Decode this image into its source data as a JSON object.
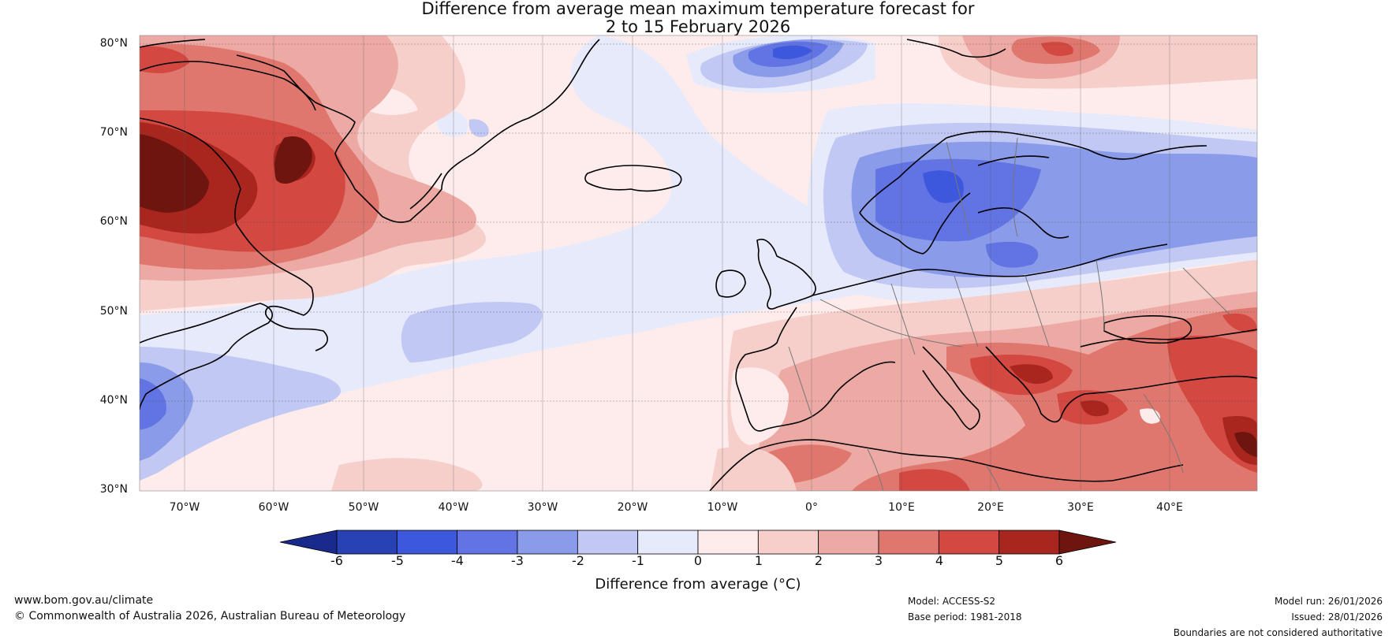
{
  "title": {
    "line1": "Difference from average mean maximum temperature forecast for",
    "line2": "2 to 15 February 2026"
  },
  "map": {
    "lat_labels": [
      "80°N",
      "70°N",
      "60°N",
      "50°N",
      "40°N",
      "30°N"
    ],
    "lon_labels": [
      "70°W",
      "60°W",
      "50°W",
      "40°W",
      "30°W",
      "20°W",
      "10°W",
      "0°",
      "10°E",
      "20°E",
      "30°E",
      "40°E"
    ],
    "extent": {
      "lon": [
        -75,
        50
      ],
      "lat": [
        30,
        81
      ]
    }
  },
  "colorbar": {
    "ticks": [
      "-6",
      "-5",
      "-4",
      "-3",
      "-2",
      "-1",
      "0",
      "1",
      "2",
      "3",
      "4",
      "5",
      "6"
    ],
    "colors": [
      "#1a2a8c",
      "#2841b4",
      "#3d58dd",
      "#6274e4",
      "#8a9bea",
      "#c0c8f3",
      "#e6eafb",
      "#fdeceb",
      "#f6cfcb",
      "#eda9a4",
      "#e0776f",
      "#d34840",
      "#a9261f",
      "#6e1510"
    ],
    "label": "Difference from average (°C)"
  },
  "footer": {
    "website": "www.bom.gov.au/climate",
    "copyright": "© Commonwealth of Australia 2026, Australian Bureau of Meteorology",
    "model": "Model: ACCESS-S2",
    "base_period": "Base period: 1981-2018",
    "model_run": "Model run: 26/01/2026",
    "issued": "Issued: 28/01/2026",
    "disclaimer": "Boundaries are not considered authoritative"
  }
}
